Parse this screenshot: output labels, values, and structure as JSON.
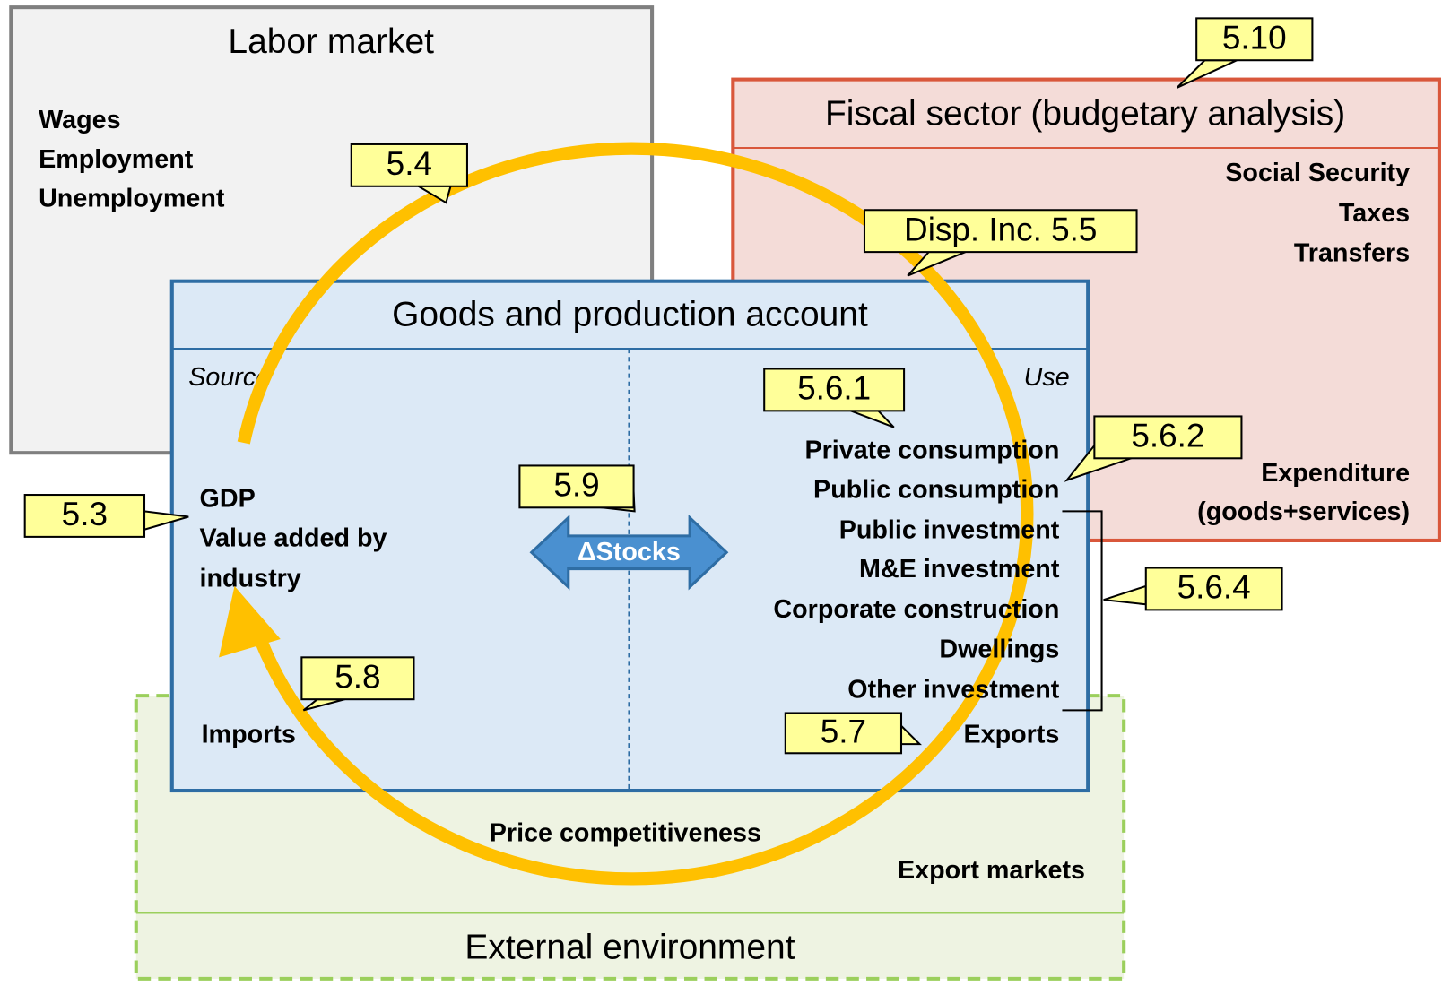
{
  "labor_market": {
    "title": "Labor market",
    "items": [
      "Wages",
      "Employment",
      "Unemployment"
    ]
  },
  "fiscal_sector": {
    "title": "Fiscal sector (budgetary analysis)",
    "items": [
      "Social Security",
      "Taxes",
      "Transfers"
    ],
    "expenditure": [
      "Expenditure",
      "(goods+services)"
    ]
  },
  "goods_account": {
    "title": "Goods and production account",
    "source_label": "Source",
    "use_label": "Use",
    "source_items": [
      "GDP",
      "Value added by",
      "industry"
    ],
    "imports": "Imports",
    "use_items": [
      "Private consumption",
      "Public consumption",
      "Public investment",
      "M&E investment",
      "Corporate construction",
      "Dwellings",
      "Other investment"
    ],
    "exports": "Exports",
    "stocks": "ΔStocks"
  },
  "external": {
    "title": "External environment",
    "price": "Price competitiveness",
    "export_markets": "Export markets"
  },
  "callouts": [
    "5.10",
    "5.4",
    "Disp. Inc. 5.5",
    "5.6.1",
    "5.6.2",
    "5.3",
    "5.9",
    "5.6.4",
    "5.8",
    "5.7"
  ]
}
